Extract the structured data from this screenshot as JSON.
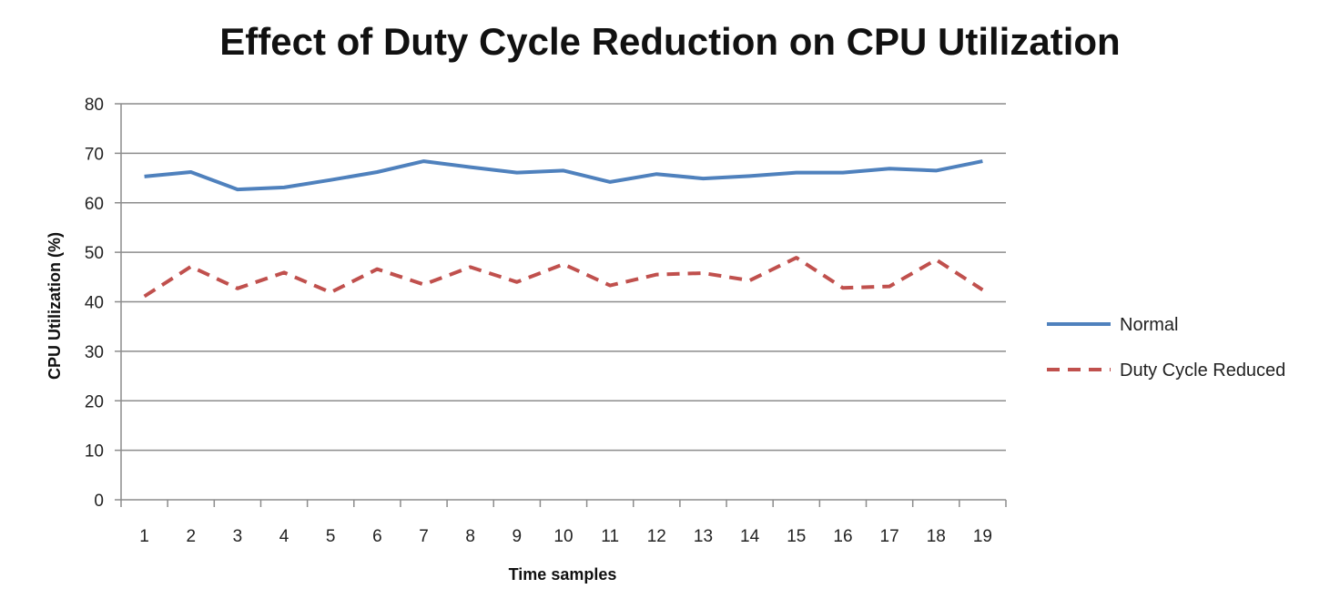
{
  "chart_data": {
    "type": "line",
    "title": "Effect of Duty Cycle Reduction on CPU Utilization",
    "xlabel": "Time samples",
    "ylabel": "CPU Utilization  (%)",
    "categories": [
      "1",
      "2",
      "3",
      "4",
      "5",
      "6",
      "7",
      "8",
      "9",
      "10",
      "11",
      "12",
      "13",
      "14",
      "15",
      "16",
      "17",
      "18",
      "19"
    ],
    "ylim": [
      0,
      80
    ],
    "yticks": [
      0,
      10,
      20,
      30,
      40,
      50,
      60,
      70,
      80
    ],
    "grid": true,
    "legend_position": "right",
    "series": [
      {
        "name": "Normal",
        "color": "#4F81BD",
        "style": "solid",
        "values": [
          65.3,
          66.2,
          62.7,
          63.1,
          64.6,
          66.2,
          68.4,
          67.2,
          66.1,
          66.5,
          64.2,
          65.8,
          64.9,
          65.4,
          66.1,
          66.1,
          66.9,
          66.5,
          68.4
        ]
      },
      {
        "name": "Duty Cycle Reduced",
        "color": "#C0504D",
        "style": "dashed",
        "values": [
          41.1,
          47.1,
          42.7,
          45.9,
          41.9,
          46.6,
          43.5,
          47.0,
          44.0,
          47.6,
          43.3,
          45.5,
          45.8,
          44.3,
          48.9,
          42.8,
          43.1,
          48.5,
          42.4
        ]
      }
    ]
  }
}
